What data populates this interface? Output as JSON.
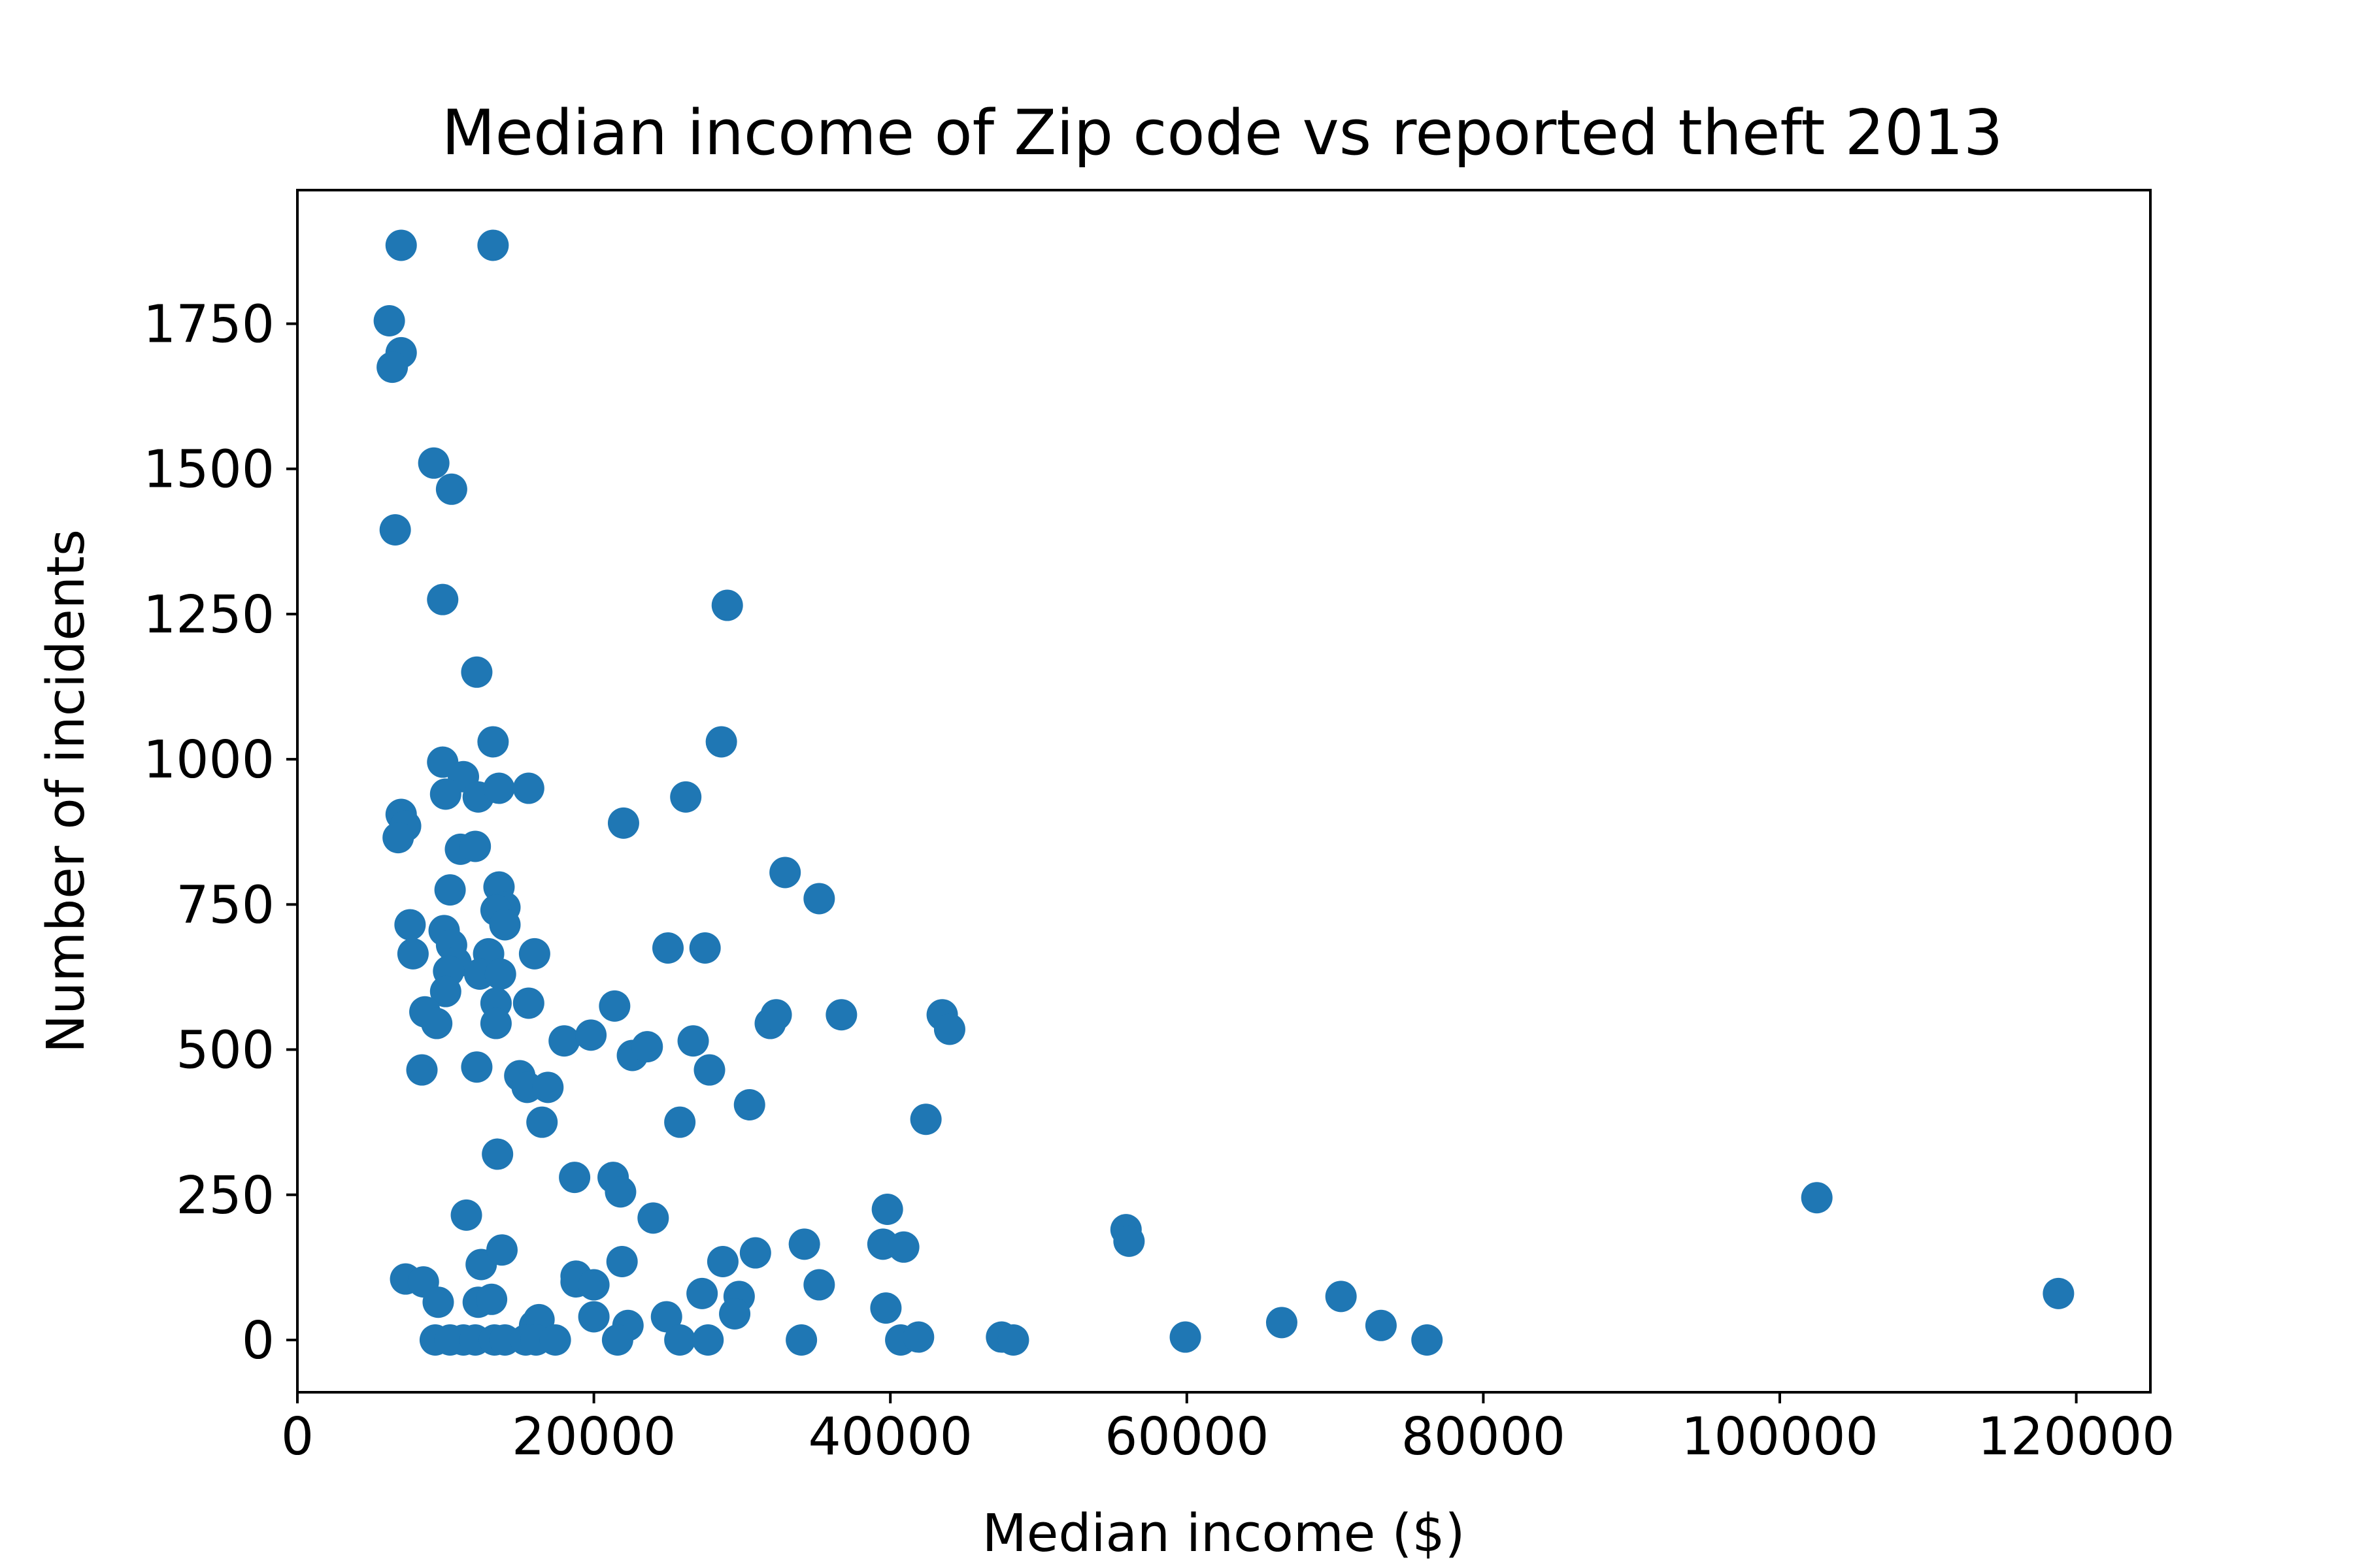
{
  "chart_data": {
    "type": "scatter",
    "title": "Median income of Zip code vs reported theft 2013",
    "xlabel": "Median income ($)",
    "ylabel": "Number of incidents",
    "xlim": [
      0,
      125000
    ],
    "ylim": [
      -90,
      1980
    ],
    "xticks": [
      0,
      20000,
      40000,
      60000,
      80000,
      100000,
      120000
    ],
    "xtick_labels": [
      "0",
      "20000",
      "40000",
      "60000",
      "80000",
      "100000",
      "120000"
    ],
    "yticks": [
      0,
      250,
      500,
      750,
      1000,
      1250,
      1500,
      1750
    ],
    "ytick_labels": [
      "0",
      "250",
      "500",
      "750",
      "1000",
      "1250",
      "1500",
      "1750"
    ],
    "grid": false,
    "color": "#1f77b4",
    "series": [
      {
        "points": [
          [
            7000,
            1885
          ],
          [
            13200,
            1885
          ],
          [
            6200,
            1755
          ],
          [
            7000,
            1700
          ],
          [
            6400,
            1675
          ],
          [
            9200,
            1510
          ],
          [
            10400,
            1465
          ],
          [
            6600,
            1395
          ],
          [
            9800,
            1275
          ],
          [
            12100,
            1150
          ],
          [
            13200,
            1030
          ],
          [
            9800,
            995
          ],
          [
            11200,
            970
          ],
          [
            10000,
            940
          ],
          [
            12200,
            935
          ],
          [
            13600,
            950
          ],
          [
            15600,
            950
          ],
          [
            7000,
            905
          ],
          [
            7300,
            885
          ],
          [
            6800,
            865
          ],
          [
            11000,
            845
          ],
          [
            12000,
            850
          ],
          [
            10300,
            775
          ],
          [
            13600,
            780
          ],
          [
            14000,
            745
          ],
          [
            13400,
            740
          ],
          [
            14000,
            715
          ],
          [
            7600,
            715
          ],
          [
            9900,
            705
          ],
          [
            10400,
            680
          ],
          [
            7800,
            665
          ],
          [
            12900,
            665
          ],
          [
            16000,
            665
          ],
          [
            10700,
            650
          ],
          [
            10200,
            635
          ],
          [
            12300,
            630
          ],
          [
            13700,
            630
          ],
          [
            10000,
            600
          ],
          [
            8600,
            565
          ],
          [
            9400,
            545
          ],
          [
            13400,
            580
          ],
          [
            13400,
            545
          ],
          [
            15600,
            580
          ],
          [
            8400,
            465
          ],
          [
            12100,
            470
          ],
          [
            15000,
            455
          ],
          [
            15500,
            435
          ],
          [
            16900,
            435
          ],
          [
            16500,
            375
          ],
          [
            13500,
            320
          ],
          [
            18000,
            515
          ],
          [
            19800,
            525
          ],
          [
            21400,
            575
          ],
          [
            22600,
            490
          ],
          [
            23600,
            505
          ],
          [
            25000,
            675
          ],
          [
            27500,
            675
          ],
          [
            26700,
            515
          ],
          [
            27800,
            465
          ],
          [
            25800,
            375
          ],
          [
            26200,
            935
          ],
          [
            22000,
            890
          ],
          [
            28600,
            1030
          ],
          [
            29000,
            1265
          ],
          [
            32900,
            805
          ],
          [
            35200,
            760
          ],
          [
            31900,
            545
          ],
          [
            32300,
            560
          ],
          [
            36700,
            560
          ],
          [
            30500,
            405
          ],
          [
            43500,
            560
          ],
          [
            44000,
            535
          ],
          [
            42400,
            380
          ],
          [
            18700,
            280
          ],
          [
            21300,
            280
          ],
          [
            21800,
            255
          ],
          [
            24000,
            210
          ],
          [
            11400,
            215
          ],
          [
            12400,
            130
          ],
          [
            13800,
            155
          ],
          [
            7300,
            105
          ],
          [
            8500,
            100
          ],
          [
            9500,
            65
          ],
          [
            12200,
            65
          ],
          [
            13100,
            70
          ],
          [
            16000,
            25
          ],
          [
            16300,
            35
          ],
          [
            18800,
            110
          ],
          [
            18800,
            100
          ],
          [
            20000,
            95
          ],
          [
            21900,
            135
          ],
          [
            22300,
            25
          ],
          [
            20000,
            40
          ],
          [
            24900,
            40
          ],
          [
            27300,
            80
          ],
          [
            28700,
            135
          ],
          [
            29800,
            75
          ],
          [
            29500,
            45
          ],
          [
            30900,
            150
          ],
          [
            34200,
            165
          ],
          [
            35200,
            95
          ],
          [
            39500,
            165
          ],
          [
            39800,
            225
          ],
          [
            40900,
            160
          ],
          [
            39700,
            55
          ],
          [
            9300,
            0
          ],
          [
            10300,
            0
          ],
          [
            11200,
            0
          ],
          [
            12000,
            0
          ],
          [
            13300,
            0
          ],
          [
            14000,
            0
          ],
          [
            15400,
            0
          ],
          [
            16100,
            0
          ],
          [
            17400,
            0
          ],
          [
            21600,
            0
          ],
          [
            25800,
            0
          ],
          [
            27700,
            0
          ],
          [
            34000,
            0
          ],
          [
            40700,
            0
          ],
          [
            41900,
            5
          ],
          [
            47500,
            5
          ],
          [
            48300,
            0
          ],
          [
            55900,
            190
          ],
          [
            56100,
            170
          ],
          [
            59900,
            5
          ],
          [
            66400,
            30
          ],
          [
            70400,
            75
          ],
          [
            73100,
            25
          ],
          [
            76200,
            0
          ],
          [
            102500,
            245
          ],
          [
            118800,
            80
          ]
        ]
      }
    ]
  }
}
